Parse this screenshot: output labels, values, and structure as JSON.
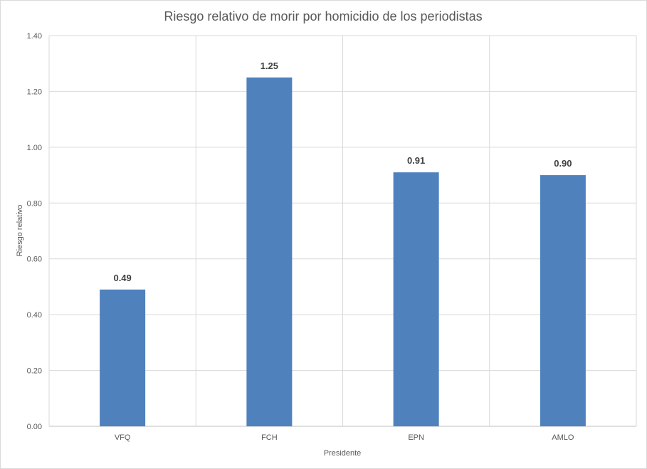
{
  "chart_data": {
    "type": "bar",
    "title": "Riesgo relativo de morir por homicidio de los periodistas",
    "xlabel": "Presidente",
    "ylabel": "Riesgo relativo",
    "categories": [
      "VFQ",
      "FCH",
      "EPN",
      "AMLO"
    ],
    "values": [
      0.49,
      1.25,
      0.91,
      0.9
    ],
    "value_labels": [
      "0.49",
      "1.25",
      "0.91",
      "0.90"
    ],
    "ylim": [
      0,
      1.4
    ],
    "yticks": [
      "0.00",
      "0.20",
      "0.40",
      "0.60",
      "0.80",
      "1.00",
      "1.20",
      "1.40"
    ],
    "ytick_values": [
      0,
      0.2,
      0.4,
      0.6,
      0.8,
      1.0,
      1.2,
      1.4
    ],
    "grid": true,
    "legend": "none",
    "bar_color": "#4f81bd"
  }
}
